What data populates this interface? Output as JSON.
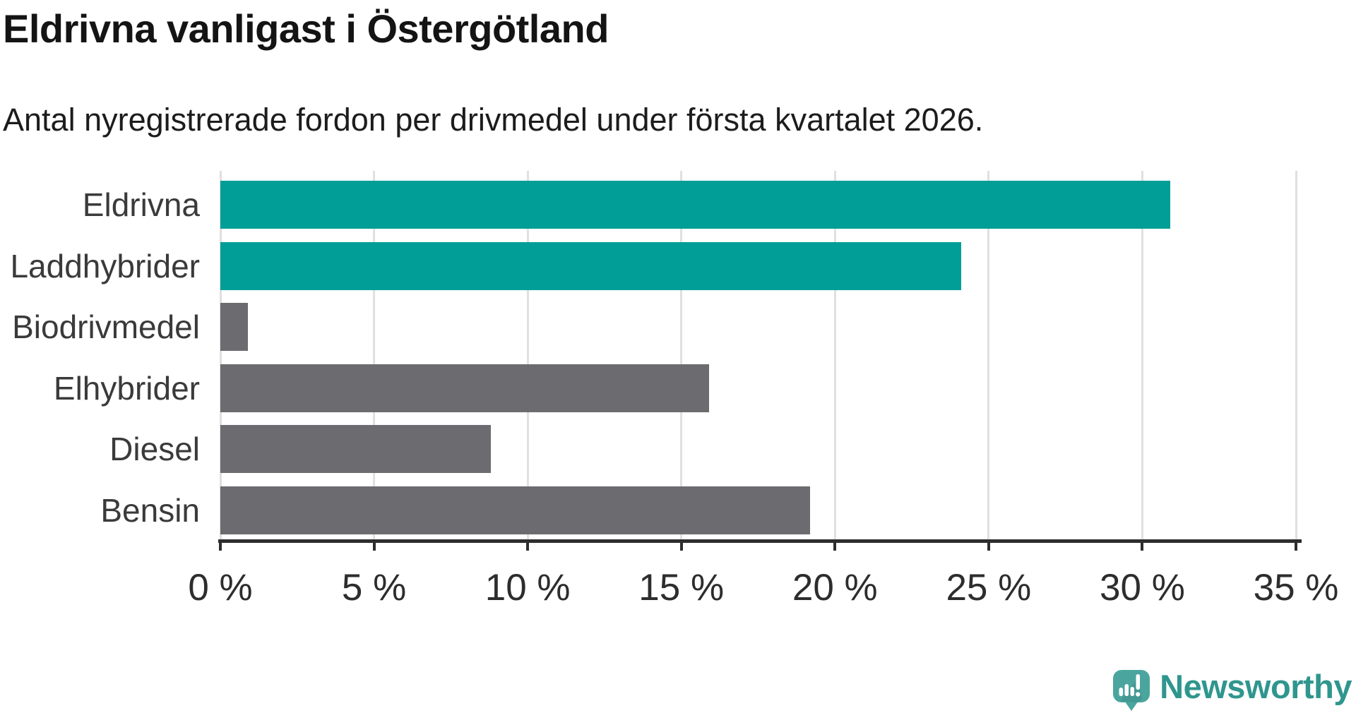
{
  "header": {
    "title": "Eldrivna vanligast i Östergötland",
    "subtitle": "Antal nyregistrerade fordon per drivmedel under första kvartalet 2026."
  },
  "chart_data": {
    "type": "bar",
    "orientation": "horizontal",
    "title": "Eldrivna vanligast i Östergötland",
    "subtitle": "Antal nyregistrerade fordon per drivmedel under första kvartalet 2026.",
    "categories": [
      "Eldrivna",
      "Laddhybrider",
      "Biodrivmedel",
      "Elhybrider",
      "Diesel",
      "Bensin"
    ],
    "values": [
      30.9,
      24.1,
      0.9,
      15.9,
      8.8,
      19.2
    ],
    "unit": "%",
    "xlim": [
      0,
      35
    ],
    "xticks": [
      0,
      5,
      10,
      15,
      20,
      25,
      30,
      35
    ],
    "xtick_labels": [
      "0 %",
      "5 %",
      "10 %",
      "15 %",
      "20 %",
      "25 %",
      "30 %",
      "35 %"
    ],
    "grid": true,
    "legend": "none",
    "highlight_color": "#009e97",
    "default_color": "#6b6b70",
    "bar_colors": [
      "#009e97",
      "#009e97",
      "#6b6b70",
      "#6b6b70",
      "#6b6b70",
      "#6b6b70"
    ],
    "gridline_color": "#e0e0e0",
    "axis_color": "#2d2d2d"
  },
  "footer": {
    "brand": "Newsworthy",
    "brand_color": "#2f968e",
    "icon_color": "#4ba59f",
    "icon_shadow_color": "#3c8e88"
  }
}
